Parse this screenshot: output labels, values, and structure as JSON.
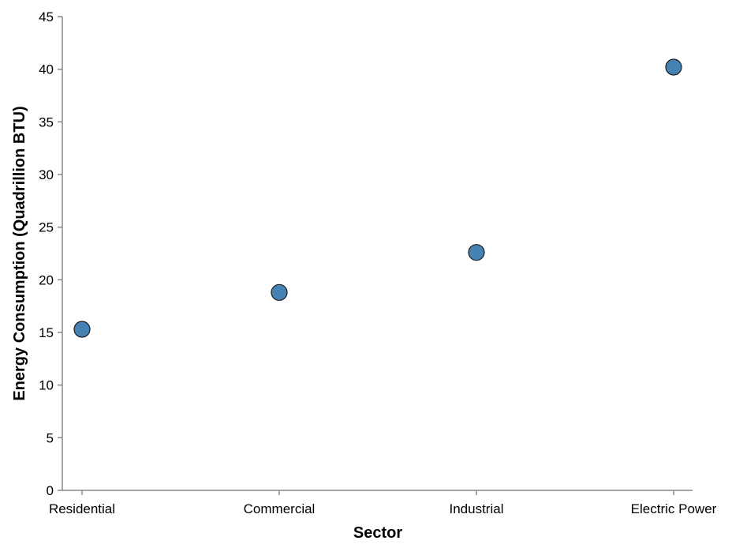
{
  "chart_data": {
    "type": "scatter",
    "title": "",
    "xlabel": "Sector",
    "ylabel": "Energy Consumption (Quadrillion BTU)",
    "categories": [
      "Residential",
      "Commercial",
      "Industrial",
      "Electric Power"
    ],
    "values": [
      15.3,
      18.8,
      22.6,
      40.2
    ],
    "ylim": [
      0,
      45
    ],
    "yticks": [
      0,
      5,
      10,
      15,
      20,
      25,
      30,
      35,
      40,
      45
    ],
    "grid": false,
    "legend": "none",
    "colors": {
      "point_fill": "#4682b4",
      "point_stroke": "#1a1a1a",
      "axis": "#888888"
    }
  }
}
